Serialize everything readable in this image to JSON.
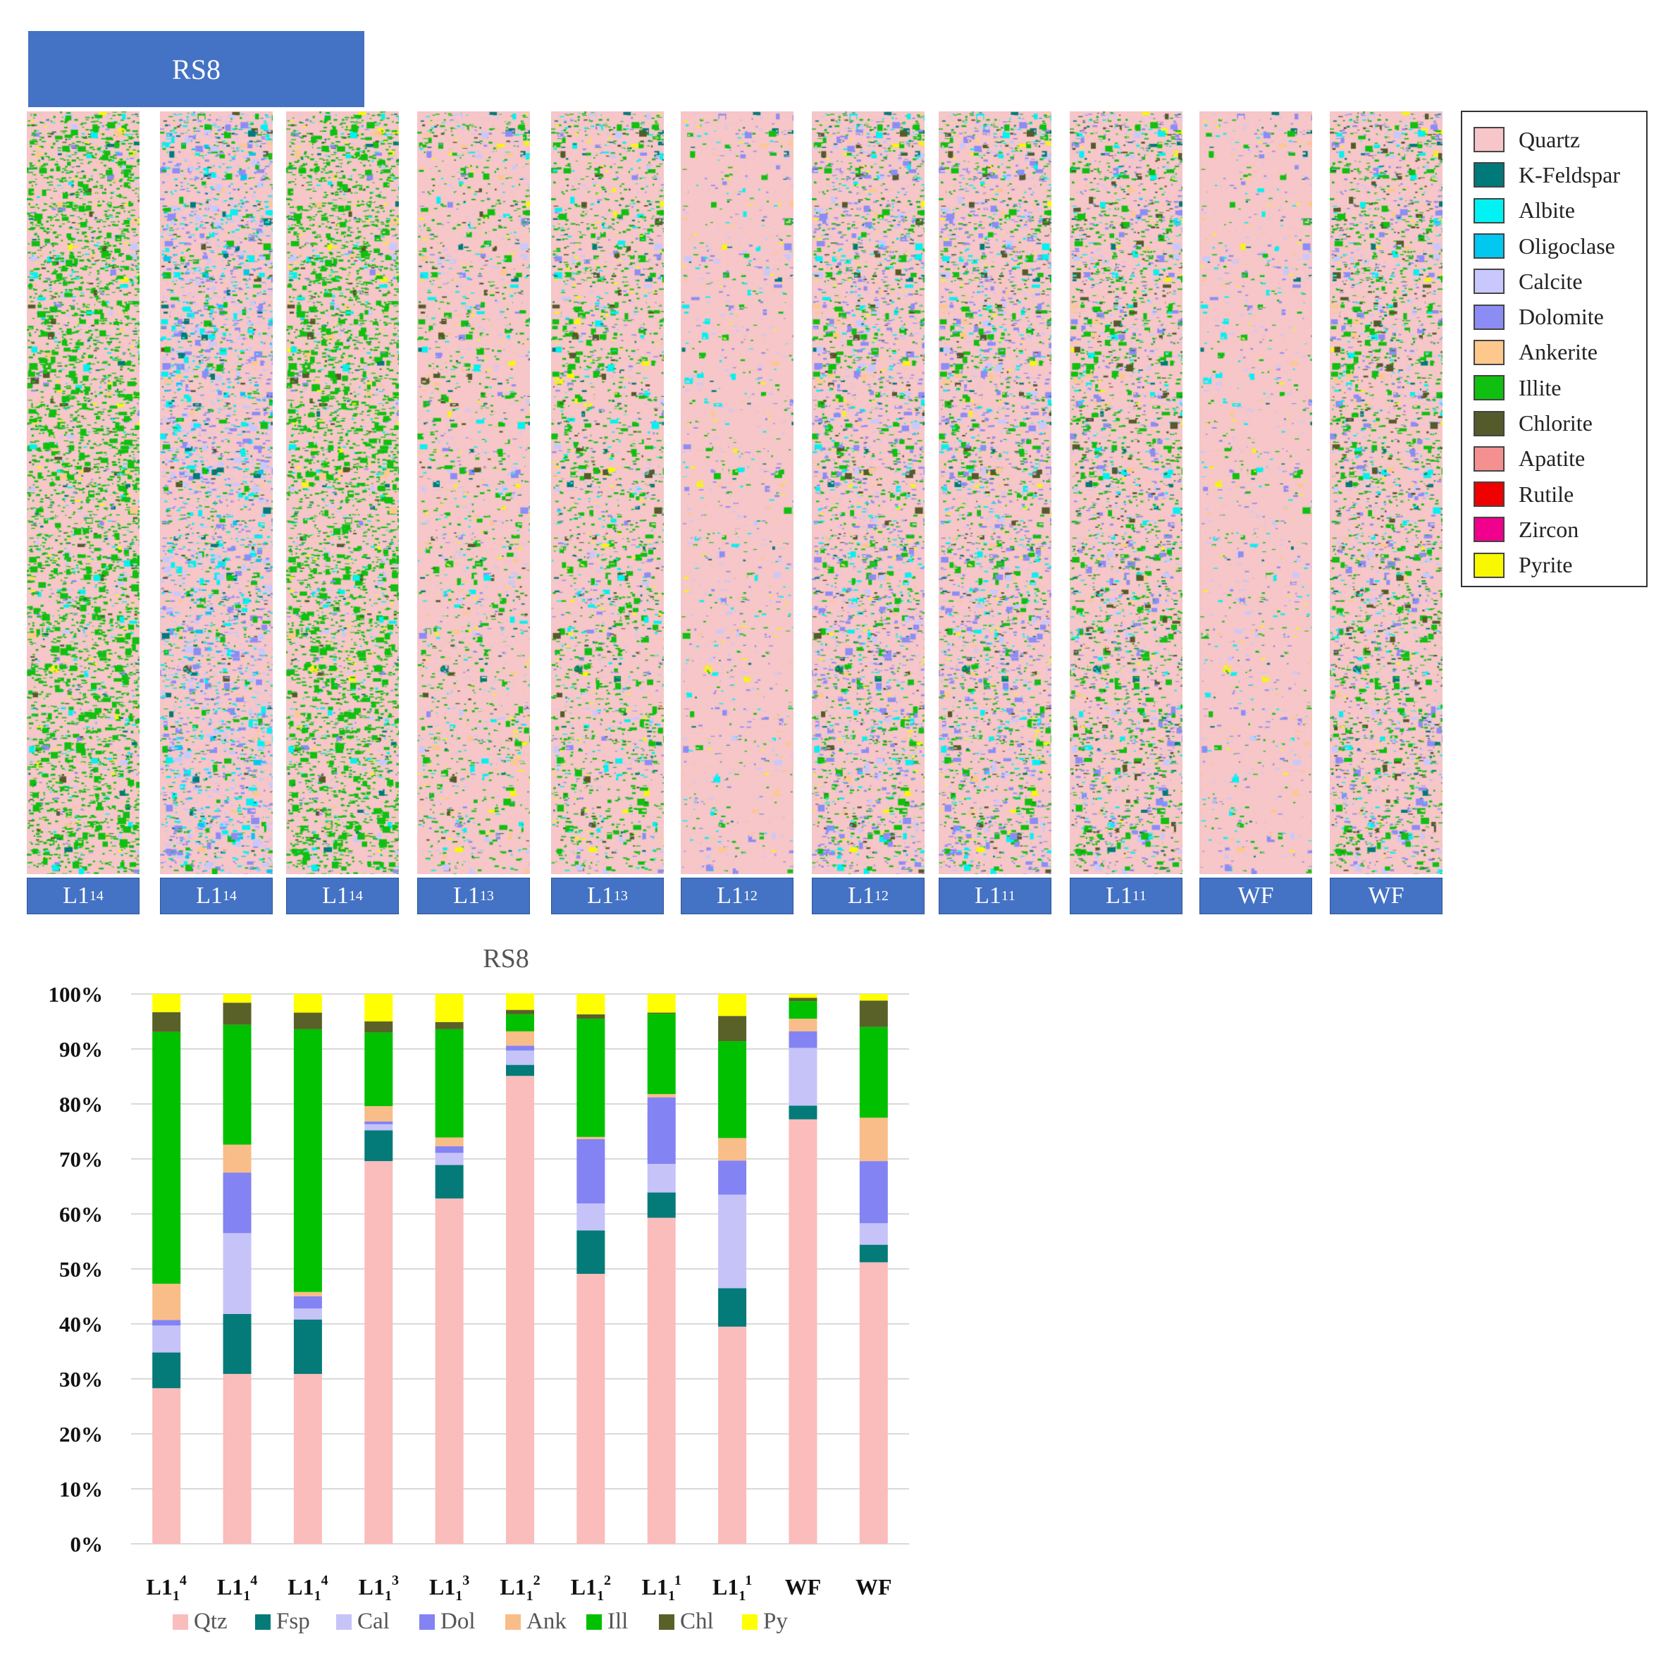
{
  "banner_title": "RS8",
  "strips": [
    {
      "base": "L1",
      "sub": "1",
      "sup": "4",
      "palette": "illite-rich"
    },
    {
      "base": "L1",
      "sub": "1",
      "sup": "4",
      "palette": "feldspar-carbonate"
    },
    {
      "base": "L1",
      "sub": "1",
      "sup": "4",
      "palette": "illite-rich"
    },
    {
      "base": "L1",
      "sub": "1",
      "sup": "3",
      "palette": "quartz-rich"
    },
    {
      "base": "L1",
      "sub": "1",
      "sup": "3",
      "palette": "quartz-illite"
    },
    {
      "base": "L1",
      "sub": "1",
      "sup": "2",
      "palette": "quartz-dominant"
    },
    {
      "base": "L1",
      "sub": "1",
      "sup": "2",
      "palette": "mixed-dolomite"
    },
    {
      "base": "L1",
      "sub": "1",
      "sup": "1",
      "palette": "mixed-dolomite"
    },
    {
      "base": "L1",
      "sub": "1",
      "sup": "1",
      "palette": "mixed-chlorite"
    },
    {
      "base": "WF",
      "sub": "",
      "sup": "",
      "palette": "quartz-dominant"
    },
    {
      "base": "WF",
      "sub": "",
      "sup": "",
      "palette": "mixed-chlorite"
    }
  ],
  "mineral_legend": [
    {
      "name": "Quartz",
      "color": "#f6c6c8"
    },
    {
      "name": "K-Feldspar",
      "color": "#007a78"
    },
    {
      "name": "Albite",
      "color": "#00f2f2"
    },
    {
      "name": "Oligoclase",
      "color": "#00c8f0"
    },
    {
      "name": "Calcite",
      "color": "#c8c8ff"
    },
    {
      "name": "Dolomite",
      "color": "#8c8cf5"
    },
    {
      "name": "Ankerite",
      "color": "#fcc88c"
    },
    {
      "name": "Illite",
      "color": "#10c010"
    },
    {
      "name": "Chlorite",
      "color": "#555a2a"
    },
    {
      "name": "Apatite",
      "color": "#f59090"
    },
    {
      "name": "Rutile",
      "color": "#f00000"
    },
    {
      "name": "Zircon",
      "color": "#f0008c"
    },
    {
      "name": "Pyrite",
      "color": "#f8f800"
    }
  ],
  "chart_data": {
    "type": "bar",
    "stacked": true,
    "title": "RS8",
    "xlabel": "",
    "ylabel": "",
    "ylim": [
      0,
      100
    ],
    "yticks": [
      0,
      10,
      20,
      30,
      40,
      50,
      60,
      70,
      80,
      90,
      100
    ],
    "ytick_format": "%",
    "grid": true,
    "legend_position": "bottom",
    "categories": [
      {
        "base": "L1",
        "sub": "1",
        "sup": "4"
      },
      {
        "base": "L1",
        "sub": "1",
        "sup": "4"
      },
      {
        "base": "L1",
        "sub": "1",
        "sup": "4"
      },
      {
        "base": "L1",
        "sub": "1",
        "sup": "3"
      },
      {
        "base": "L1",
        "sub": "1",
        "sup": "3"
      },
      {
        "base": "L1",
        "sub": "1",
        "sup": "2"
      },
      {
        "base": "L1",
        "sub": "1",
        "sup": "2"
      },
      {
        "base": "L1",
        "sub": "1",
        "sup": "1"
      },
      {
        "base": "L1",
        "sub": "1",
        "sup": "1"
      },
      {
        "base": "WF",
        "sub": "",
        "sup": ""
      },
      {
        "base": "WF",
        "sub": "",
        "sup": ""
      }
    ],
    "series": [
      {
        "name": "Qtz",
        "color": "#fbbcbc",
        "values": [
          28.3,
          30.9,
          30.9,
          69.6,
          62.8,
          85.1,
          49.1,
          59.3,
          39.5,
          77.2,
          51.2
        ]
      },
      {
        "name": "Fsp",
        "color": "#047b78",
        "values": [
          6.5,
          10.9,
          9.9,
          5.6,
          6.1,
          2.0,
          7.9,
          4.6,
          7.0,
          2.5,
          3.2
        ]
      },
      {
        "name": "Cal",
        "color": "#c6c3f9",
        "values": [
          4.9,
          14.7,
          2.0,
          1.1,
          2.2,
          2.6,
          4.9,
          5.2,
          17.0,
          10.5,
          3.9
        ]
      },
      {
        "name": "Dol",
        "color": "#8383f4",
        "values": [
          1.0,
          11.0,
          2.2,
          0.5,
          1.2,
          0.9,
          11.7,
          12.1,
          6.2,
          3.0,
          11.3
        ]
      },
      {
        "name": "Ank",
        "color": "#f8bd88",
        "values": [
          6.6,
          5.1,
          0.8,
          2.8,
          1.6,
          2.6,
          0.4,
          0.6,
          4.1,
          2.3,
          7.9
        ]
      },
      {
        "name": "Ill",
        "color": "#00c000",
        "values": [
          45.8,
          21.8,
          47.8,
          13.4,
          19.7,
          3.1,
          21.5,
          14.6,
          17.6,
          3.2,
          16.5
        ]
      },
      {
        "name": "Chl",
        "color": "#5a6128",
        "values": [
          3.6,
          4.0,
          3.0,
          2.0,
          1.3,
          0.8,
          0.8,
          0.2,
          4.6,
          0.6,
          4.8
        ]
      },
      {
        "name": "Py",
        "color": "#ffff00",
        "values": [
          3.3,
          1.6,
          3.4,
          5.0,
          5.1,
          3.0,
          3.7,
          3.4,
          4.0,
          0.7,
          1.2
        ]
      }
    ]
  }
}
